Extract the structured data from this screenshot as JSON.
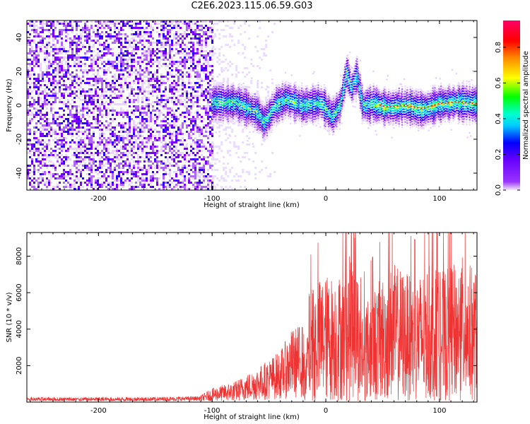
{
  "title": "C2E6.2023.115.06.59.G03",
  "chart_data": [
    {
      "type": "heatmap",
      "name": "spectrogram",
      "xlabel": "Height of straight line (km)",
      "ylabel": "Frequency (Hz)",
      "xlim": [
        -263,
        133
      ],
      "ylim": [
        -50,
        50
      ],
      "xticks": [
        -200,
        -100,
        0,
        100
      ],
      "yticks": [
        -40,
        -20,
        0,
        20,
        40
      ],
      "grid": false,
      "noise_region_x": [
        -263,
        -100
      ],
      "signal_band": [
        {
          "x": -100,
          "y": 2
        },
        {
          "x": -80,
          "y": 2
        },
        {
          "x": -60,
          "y": -4
        },
        {
          "x": -55,
          "y": -10
        },
        {
          "x": -45,
          "y": 0
        },
        {
          "x": -35,
          "y": 4
        },
        {
          "x": -20,
          "y": 0
        },
        {
          "x": -5,
          "y": 2
        },
        {
          "x": 5,
          "y": -6
        },
        {
          "x": 12,
          "y": 0
        },
        {
          "x": 18,
          "y": 20
        },
        {
          "x": 22,
          "y": 10
        },
        {
          "x": 27,
          "y": 18
        },
        {
          "x": 32,
          "y": 0
        },
        {
          "x": 40,
          "y": 1
        },
        {
          "x": 55,
          "y": -1
        },
        {
          "x": 70,
          "y": 0
        },
        {
          "x": 85,
          "y": -2
        },
        {
          "x": 100,
          "y": 1
        },
        {
          "x": 115,
          "y": 2
        },
        {
          "x": 133,
          "y": 1
        }
      ]
    },
    {
      "type": "line",
      "name": "snr",
      "xlabel": "Height of straight line (km)",
      "ylabel": "SNR (10 * v/v)",
      "xlim": [
        -263,
        133
      ],
      "ylim": [
        0,
        9300
      ],
      "xticks": [
        -200,
        -100,
        0,
        100
      ],
      "yticks": [
        2000,
        4000,
        6000,
        8000
      ],
      "grid": false,
      "color": "#ee3333",
      "series": [
        {
          "values_x": [
            -263,
            -200,
            -150,
            -110,
            -100,
            -80,
            -60,
            -40,
            -30,
            -20,
            -18,
            -15,
            -10,
            0,
            10,
            20,
            25,
            30,
            40,
            50,
            60,
            70,
            80,
            90,
            100,
            110,
            120,
            133
          ],
          "values_y": [
            150,
            150,
            160,
            200,
            400,
            600,
            1000,
            1500,
            2100,
            2300,
            900,
            3000,
            3300,
            3500,
            3500,
            3700,
            5500,
            2600,
            3000,
            3500,
            3800,
            3600,
            3400,
            3800,
            3600,
            3700,
            4000,
            3600
          ]
        }
      ]
    }
  ],
  "colorbar": {
    "label": "Normalized spectral amplitude",
    "range": [
      0,
      0.95
    ],
    "ticks": [
      "0.0",
      "0.2",
      "0.4",
      "0.6",
      "0.8"
    ],
    "tick_values": [
      0,
      0.2,
      0.4,
      0.6,
      0.8
    ],
    "colors": [
      "#ffffff",
      "#8000ff",
      "#0000ff",
      "#00ffff",
      "#00ff00",
      "#ffff00",
      "#ff8000",
      "#ff0000",
      "#ff0080"
    ]
  }
}
